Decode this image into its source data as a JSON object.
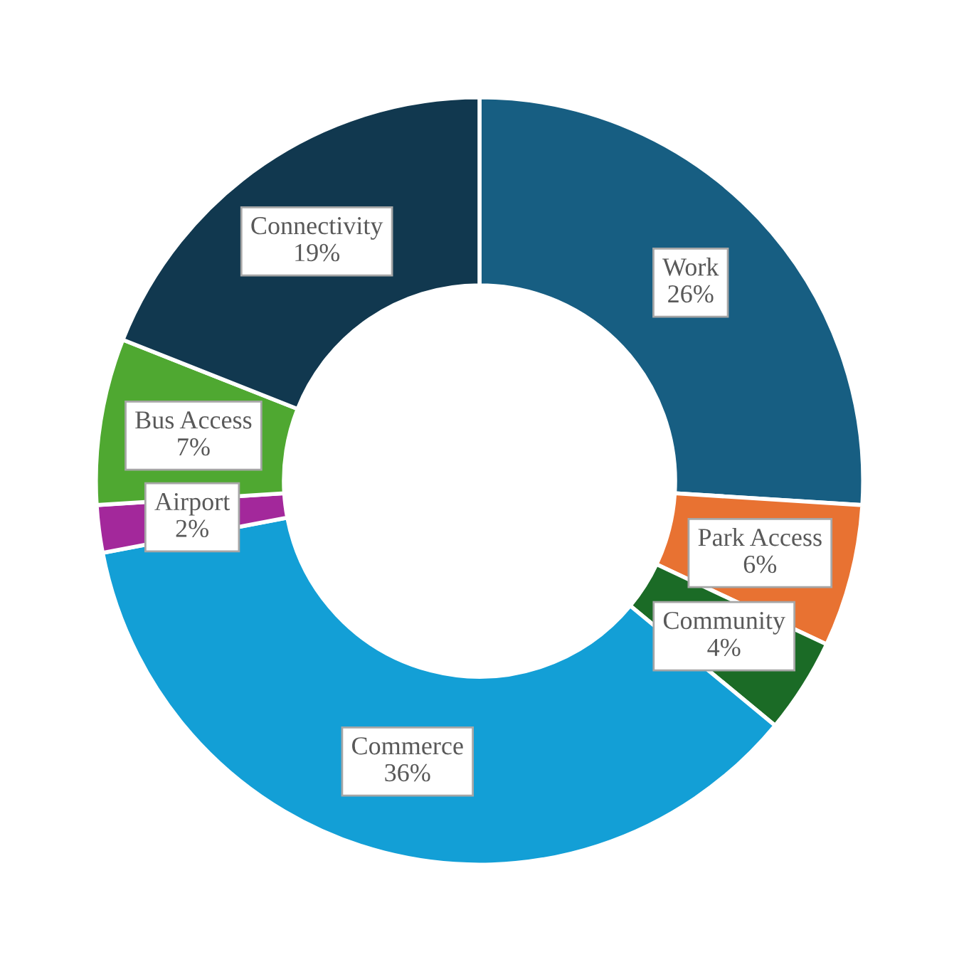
{
  "chart_data": {
    "type": "donut",
    "categories": [
      "Work",
      "Park Access",
      "Community",
      "Commerce",
      "Airport",
      "Bus Access",
      "Connectivity"
    ],
    "values": [
      26,
      6,
      4,
      36,
      2,
      7,
      19
    ],
    "value_labels": [
      "26%",
      "6%",
      "4%",
      "36%",
      "2%",
      "7%",
      "19%"
    ],
    "colors": [
      "#175e82",
      "#e87232",
      "#1b6b26",
      "#139fd6",
      "#a3289b",
      "#4fa831",
      "#11384f"
    ],
    "legend": false
  }
}
